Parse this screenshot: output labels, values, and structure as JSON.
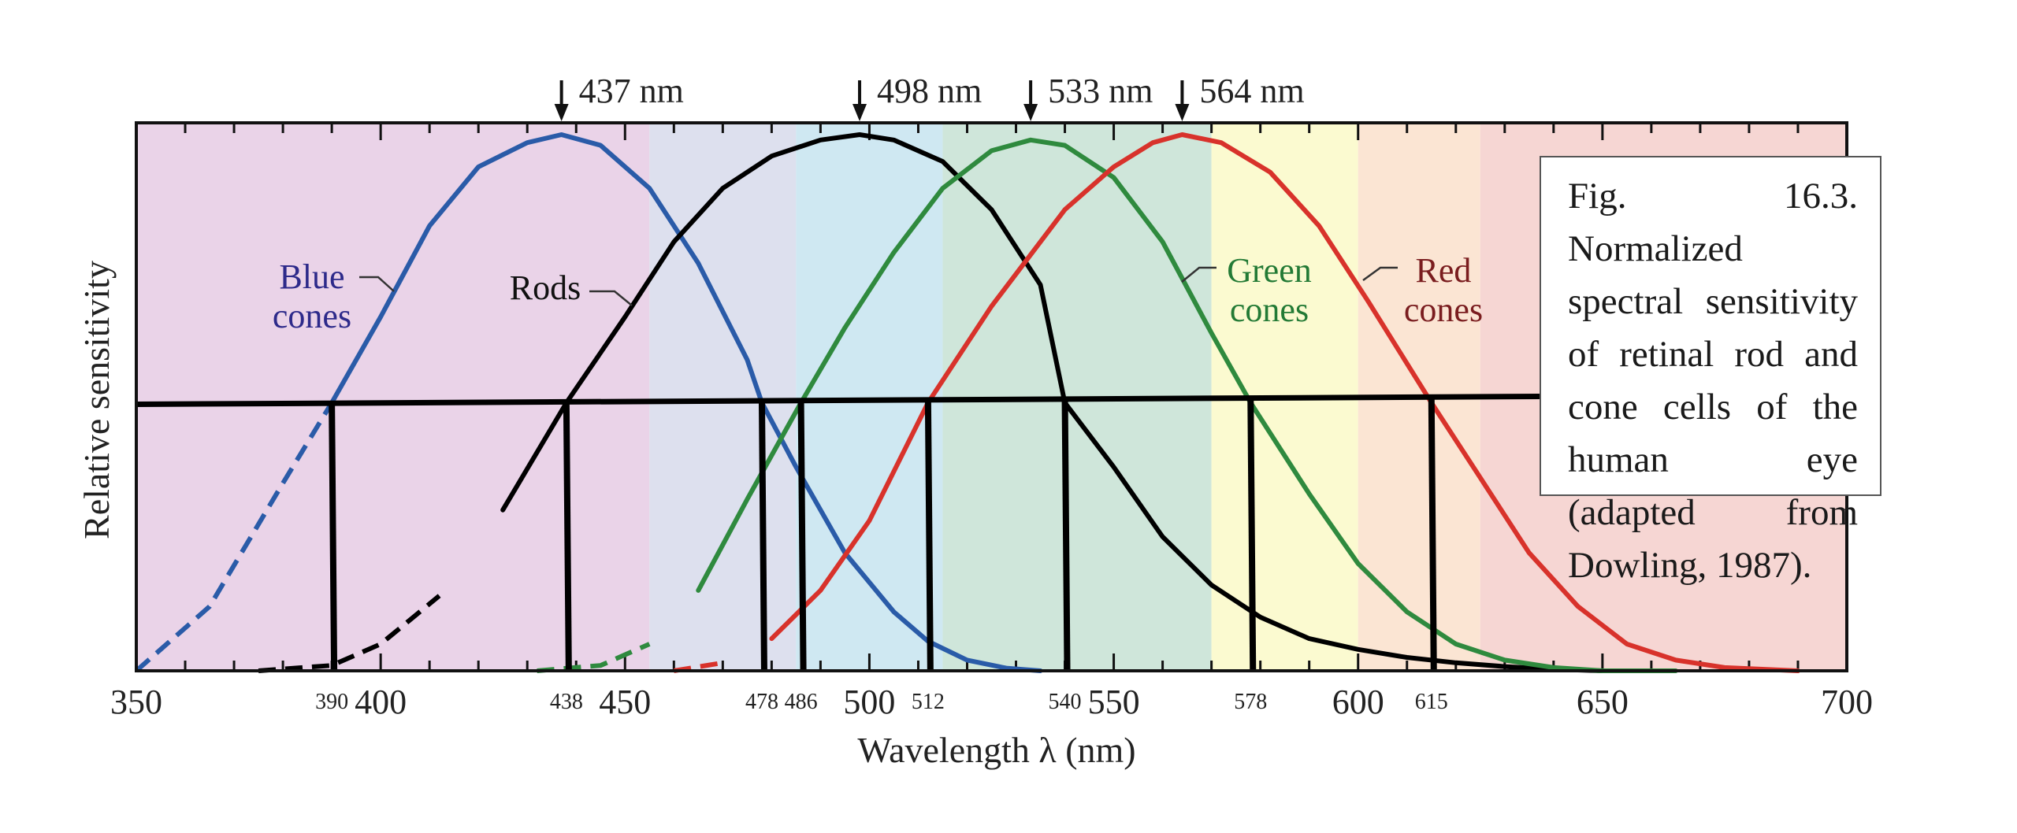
{
  "chart_data": {
    "type": "line",
    "title": "",
    "xlabel": "Wavelength λ (nm)",
    "ylabel": "Relative sensitivity",
    "xlim": [
      350,
      700
    ],
    "ylim": [
      0,
      1
    ],
    "x_ticks": [
      350,
      400,
      450,
      500,
      550,
      600,
      650,
      700
    ],
    "grid": false,
    "spectrum_bands": [
      {
        "from": 350,
        "to": 455,
        "color": "#ead3e8"
      },
      {
        "from": 455,
        "to": 485,
        "color": "#dde0ee"
      },
      {
        "from": 485,
        "to": 515,
        "color": "#cfe8f2"
      },
      {
        "from": 515,
        "to": 570,
        "color": "#cfe6da"
      },
      {
        "from": 570,
        "to": 600,
        "color": "#fbfad0"
      },
      {
        "from": 600,
        "to": 625,
        "color": "#fbe5d3"
      },
      {
        "from": 625,
        "to": 700,
        "color": "#f6d6d3"
      }
    ],
    "series": [
      {
        "name": "Blue cones",
        "label_lines": [
          "Blue",
          "cones"
        ],
        "peak": 437,
        "color": "#2a5ba8",
        "label_color": "#2d2a8a",
        "dashed_below": 390,
        "start": 350,
        "end": 535,
        "points": [
          [
            350,
            0.0
          ],
          [
            365,
            0.12
          ],
          [
            380,
            0.35
          ],
          [
            390,
            0.5
          ],
          [
            400,
            0.66
          ],
          [
            410,
            0.83
          ],
          [
            420,
            0.94
          ],
          [
            430,
            0.985
          ],
          [
            437,
            1.0
          ],
          [
            445,
            0.98
          ],
          [
            455,
            0.9
          ],
          [
            465,
            0.76
          ],
          [
            475,
            0.58
          ],
          [
            478,
            0.5
          ],
          [
            485,
            0.38
          ],
          [
            495,
            0.22
          ],
          [
            505,
            0.11
          ],
          [
            512,
            0.055
          ],
          [
            520,
            0.02
          ],
          [
            528,
            0.005
          ],
          [
            535,
            0.0
          ]
        ]
      },
      {
        "name": "Rods",
        "label_lines": [
          "Rods"
        ],
        "peak": 498,
        "color": "#000000",
        "label_color": "#111111",
        "dashed_below": 420,
        "start": 375,
        "end": 650,
        "points": [
          [
            375,
            0.0
          ],
          [
            390,
            0.01
          ],
          [
            400,
            0.05
          ],
          [
            412,
            0.14
          ],
          [
            425,
            0.3
          ],
          [
            438,
            0.5
          ],
          [
            450,
            0.66
          ],
          [
            460,
            0.8
          ],
          [
            470,
            0.9
          ],
          [
            480,
            0.96
          ],
          [
            490,
            0.99
          ],
          [
            498,
            1.0
          ],
          [
            505,
            0.99
          ],
          [
            515,
            0.95
          ],
          [
            525,
            0.86
          ],
          [
            535,
            0.72
          ],
          [
            540,
            0.5
          ],
          [
            550,
            0.38
          ],
          [
            560,
            0.25
          ],
          [
            570,
            0.16
          ],
          [
            580,
            0.1
          ],
          [
            590,
            0.06
          ],
          [
            600,
            0.04
          ],
          [
            610,
            0.025
          ],
          [
            620,
            0.015
          ],
          [
            630,
            0.008
          ],
          [
            640,
            0.003
          ],
          [
            650,
            0.0
          ]
        ]
      },
      {
        "name": "Green cones",
        "label_lines": [
          "Green",
          "cones"
        ],
        "peak": 533,
        "color": "#2f8a3e",
        "label_color": "#237a35",
        "dashed_below": 460,
        "start": 432,
        "end": 665,
        "points": [
          [
            432,
            0.0
          ],
          [
            445,
            0.01
          ],
          [
            455,
            0.05
          ],
          [
            465,
            0.15
          ],
          [
            475,
            0.32
          ],
          [
            486,
            0.5
          ],
          [
            495,
            0.64
          ],
          [
            505,
            0.78
          ],
          [
            515,
            0.9
          ],
          [
            525,
            0.97
          ],
          [
            533,
            0.99
          ],
          [
            540,
            0.98
          ],
          [
            550,
            0.92
          ],
          [
            560,
            0.8
          ],
          [
            570,
            0.63
          ],
          [
            578,
            0.5
          ],
          [
            590,
            0.33
          ],
          [
            600,
            0.2
          ],
          [
            610,
            0.11
          ],
          [
            620,
            0.05
          ],
          [
            630,
            0.02
          ],
          [
            640,
            0.006
          ],
          [
            650,
            0.0
          ],
          [
            665,
            0.0
          ]
        ]
      },
      {
        "name": "Red cones",
        "label_lines": [
          "Red",
          "cones"
        ],
        "peak": 564,
        "color": "#d8322b",
        "label_color": "#7a1d1f",
        "dashed_below": 475,
        "start": 460,
        "end": 690,
        "points": [
          [
            460,
            0.0
          ],
          [
            470,
            0.015
          ],
          [
            480,
            0.06
          ],
          [
            490,
            0.15
          ],
          [
            500,
            0.28
          ],
          [
            512,
            0.5
          ],
          [
            525,
            0.68
          ],
          [
            540,
            0.86
          ],
          [
            550,
            0.94
          ],
          [
            558,
            0.985
          ],
          [
            564,
            1.0
          ],
          [
            572,
            0.985
          ],
          [
            582,
            0.93
          ],
          [
            592,
            0.83
          ],
          [
            602,
            0.69
          ],
          [
            615,
            0.5
          ],
          [
            625,
            0.36
          ],
          [
            635,
            0.22
          ],
          [
            645,
            0.12
          ],
          [
            655,
            0.05
          ],
          [
            665,
            0.02
          ],
          [
            675,
            0.006
          ],
          [
            690,
            0.0
          ]
        ]
      }
    ],
    "peak_markers": [
      {
        "x": 437,
        "label": "437 nm"
      },
      {
        "x": 498,
        "label": "498 nm"
      },
      {
        "x": 533,
        "label": "533 nm"
      },
      {
        "x": 564,
        "label": "564 nm"
      }
    ],
    "half_max_level": 0.5,
    "half_max_lines": [
      {
        "x": 390,
        "label": "390"
      },
      {
        "x": 438,
        "label": "438"
      },
      {
        "x": 478,
        "label": "478"
      },
      {
        "x": 486,
        "label": "486"
      },
      {
        "x": 512,
        "label": "512"
      },
      {
        "x": 540,
        "label": "540"
      },
      {
        "x": 578,
        "label": "578"
      },
      {
        "x": 615,
        "label": "615"
      }
    ]
  },
  "caption": {
    "text": "Fig. 16.3. Normalized spectral sensitivity of retinal rod and cone cells of the human eye (adapted from Dowling, 1987)."
  }
}
